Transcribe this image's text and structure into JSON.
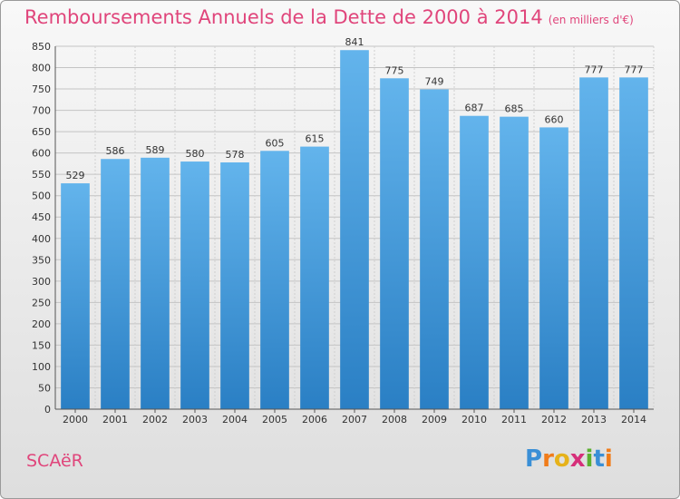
{
  "title": "Remboursements Annuels de la Dette de 2000 à 2014",
  "unit_label": "(en milliers d'€)",
  "commune": "SCAëR",
  "brand": {
    "letters": [
      "P",
      "r",
      "o",
      "x",
      "i",
      "t",
      "i"
    ],
    "colors": [
      "#3a8fd6",
      "#f07c1a",
      "#e6b21a",
      "#d62f7a",
      "#5bb030",
      "#3a8fd6",
      "#f07c1a"
    ]
  },
  "colors": {
    "bar_light": "#63b4ec",
    "bar_dark": "#2a7fc4",
    "title": "#e0457b"
  },
  "chart_data": {
    "type": "bar",
    "title": "Remboursements Annuels de la Dette de 2000 à 2014",
    "xlabel": "",
    "ylabel": "",
    "categories": [
      "2000",
      "2001",
      "2002",
      "2003",
      "2004",
      "2005",
      "2006",
      "2007",
      "2008",
      "2009",
      "2010",
      "2011",
      "2012",
      "2013",
      "2014"
    ],
    "values": [
      529,
      586,
      589,
      580,
      578,
      605,
      615,
      841,
      775,
      749,
      687,
      685,
      660,
      777,
      777
    ],
    "ylim": [
      0,
      850
    ],
    "yticks": [
      0,
      50,
      100,
      150,
      200,
      250,
      300,
      350,
      400,
      450,
      500,
      550,
      600,
      650,
      700,
      750,
      800,
      850
    ],
    "grid": true,
    "legend": "none"
  }
}
